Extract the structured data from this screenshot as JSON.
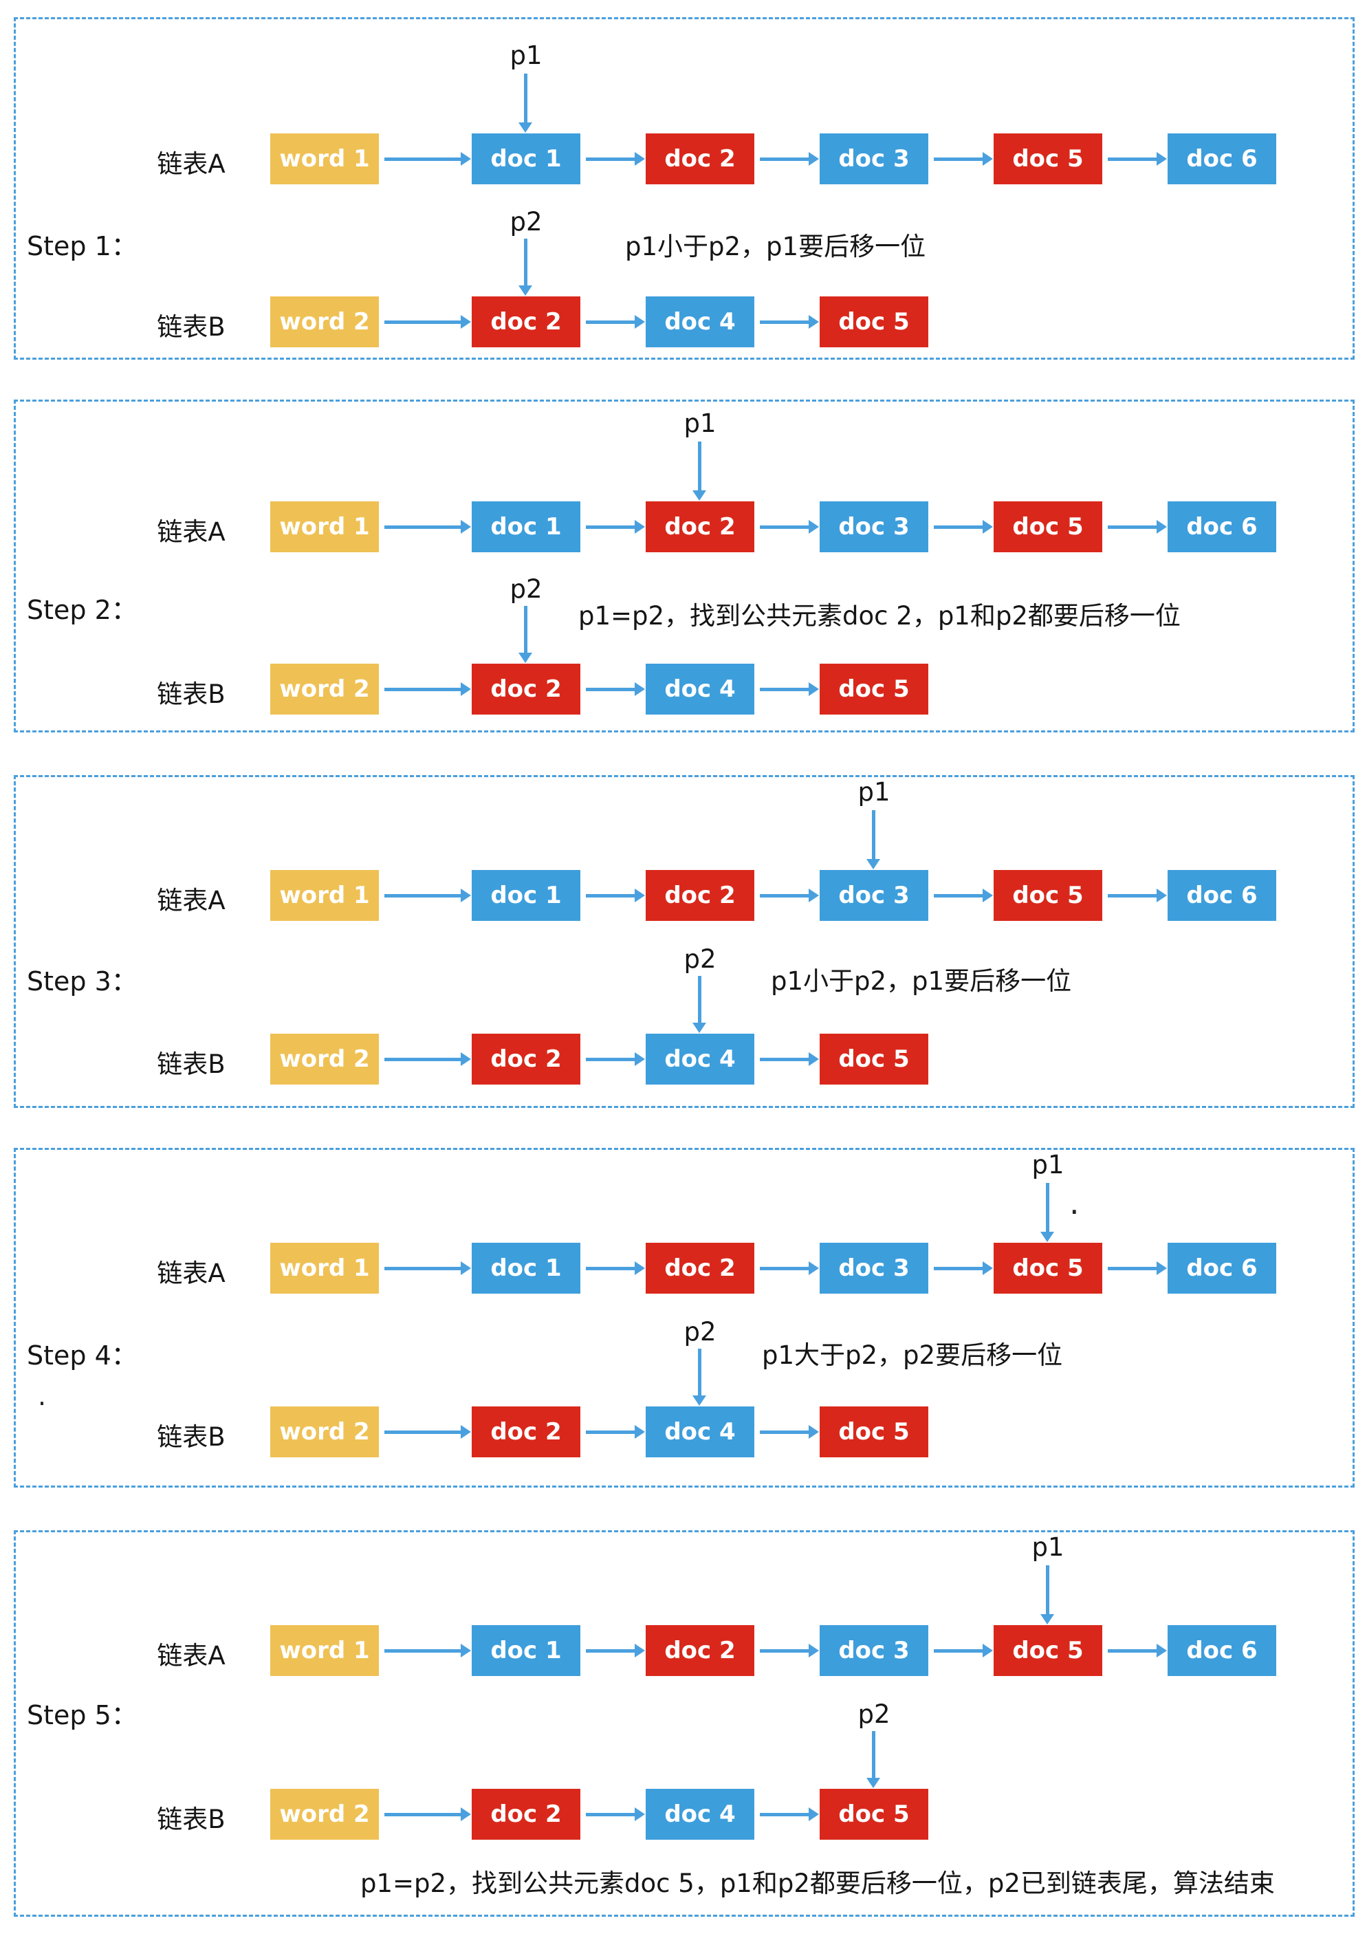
{
  "palette": {
    "node_blue": "#3D9EDC",
    "node_red": "#D9281B",
    "node_yellow": "#EFC154",
    "arrow_blue": "#4AA0DE",
    "panel_border_blue": "#4A9FDD",
    "text_color": "#151515",
    "node_text_color": "#FFFFFF"
  },
  "lists": {
    "a": {
      "label": "链表A",
      "nodes": [
        {
          "label": "word 1",
          "color": "#EFC154"
        },
        {
          "label": "doc 1",
          "color": "#3D9EDC"
        },
        {
          "label": "doc 2",
          "color": "#D9281B"
        },
        {
          "label": "doc 3",
          "color": "#3D9EDC"
        },
        {
          "label": "doc 5",
          "color": "#D9281B"
        },
        {
          "label": "doc 6",
          "color": "#3D9EDC"
        }
      ]
    },
    "b": {
      "label": "链表B",
      "nodes": [
        {
          "label": "word 2",
          "color": "#EFC154"
        },
        {
          "label": "doc 2",
          "color": "#D9281B"
        },
        {
          "label": "doc 4",
          "color": "#3D9EDC"
        },
        {
          "label": "doc 5",
          "color": "#D9281B"
        }
      ]
    }
  },
  "steps": [
    {
      "label": "Step 1：",
      "p1": {
        "label": "p1",
        "points_to": "doc 1"
      },
      "p2": {
        "label": "p2",
        "points_to": "doc 2"
      },
      "annotation": "p1小于p2，p1要后移一位"
    },
    {
      "label": "Step 2：",
      "p1": {
        "label": "p1",
        "points_to": "doc 2"
      },
      "p2": {
        "label": "p2",
        "points_to": "doc 2"
      },
      "annotation": "p1=p2，找到公共元素doc 2，p1和p2都要后移一位"
    },
    {
      "label": "Step 3：",
      "p1": {
        "label": "p1",
        "points_to": "doc 3"
      },
      "p2": {
        "label": "p2",
        "points_to": "doc 4"
      },
      "annotation": "p1小于p2，p1要后移一位"
    },
    {
      "label": "Step 4：",
      "p1": {
        "label": "p1",
        "points_to": "doc 5"
      },
      "p2": {
        "label": "p2",
        "points_to": "doc 4"
      },
      "annotation": "p1大于p2，p2要后移一位",
      "stray_marks": [
        ".",
        "."
      ]
    },
    {
      "label": "Step 5：",
      "p1": {
        "label": "p1",
        "points_to": "doc 5"
      },
      "p2": {
        "label": "p2",
        "points_to": "doc 5"
      },
      "annotation": "p1=p2，找到公共元素doc 5，p1和p2都要后移一位，p2已到链表尾，算法结束"
    }
  ]
}
